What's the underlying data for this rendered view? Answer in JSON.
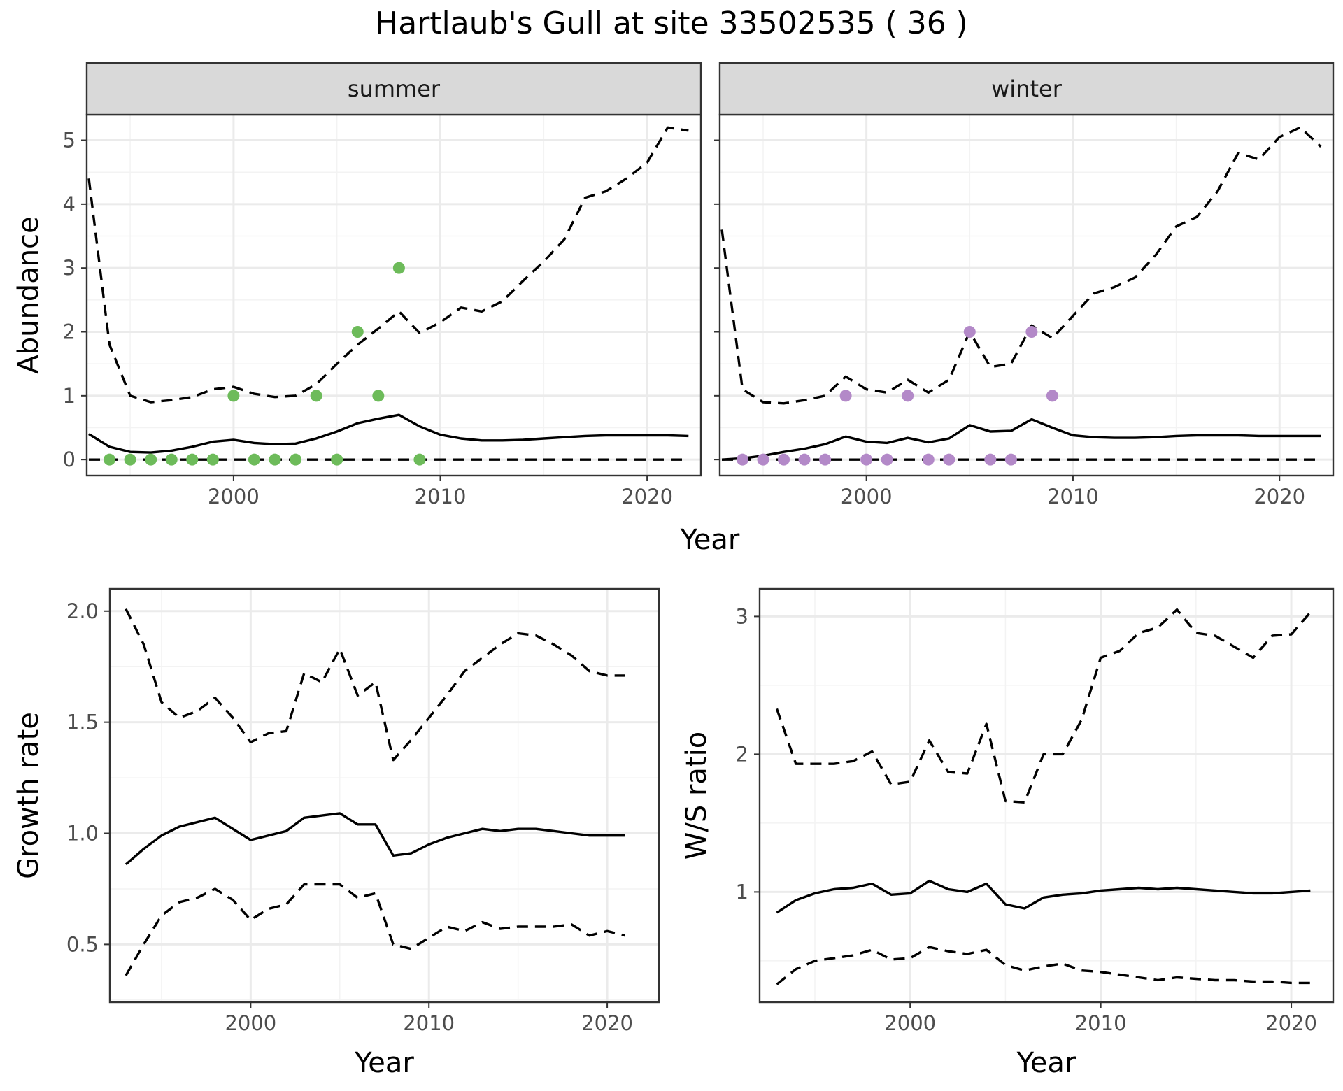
{
  "title": "Hartlaub's Gull at site 33502535 ( 36 )",
  "colors": {
    "summer": "#6dbb5a",
    "winter": "#b389c8"
  },
  "chart_data": [
    {
      "type": "line",
      "panel": "summer",
      "strip": "summer",
      "xlabel": "Year",
      "ylabel": "Abundance",
      "xlim": [
        1992.9,
        2022.6
      ],
      "ylim": [
        -0.25,
        5.4
      ],
      "xticks": [
        2000,
        2010,
        2020
      ],
      "yticks": [
        0,
        1,
        2,
        3,
        4,
        5
      ],
      "x": [
        1993,
        1994,
        1995,
        1996,
        1997,
        1998,
        1999,
        2000,
        2001,
        2002,
        2003,
        2004,
        2005,
        2006,
        2007,
        2008,
        2009,
        2010,
        2011,
        2012,
        2013,
        2014,
        2015,
        2016,
        2017,
        2018,
        2019,
        2020,
        2021,
        2022
      ],
      "series": [
        {
          "style": "solid",
          "values": [
            0.4,
            0.2,
            0.12,
            0.11,
            0.14,
            0.2,
            0.28,
            0.31,
            0.26,
            0.24,
            0.25,
            0.33,
            0.44,
            0.57,
            0.64,
            0.7,
            0.52,
            0.39,
            0.33,
            0.3,
            0.3,
            0.31,
            0.33,
            0.35,
            0.37,
            0.38,
            0.38,
            0.38,
            0.38,
            0.37
          ]
        },
        {
          "style": "dashed",
          "values": [
            4.4,
            1.8,
            1.0,
            0.9,
            0.93,
            0.98,
            1.1,
            1.14,
            1.03,
            0.98,
            1.0,
            1.18,
            1.5,
            1.8,
            2.05,
            2.32,
            1.98,
            2.15,
            2.38,
            2.32,
            2.48,
            2.8,
            3.1,
            3.45,
            4.1,
            4.2,
            4.4,
            4.65,
            5.2,
            5.15
          ]
        },
        {
          "style": "dashed",
          "values": [
            0,
            0,
            0,
            0,
            0,
            0,
            0,
            0,
            0,
            0,
            0,
            0,
            0,
            0,
            0,
            0,
            0,
            0,
            0,
            0,
            0,
            0,
            0,
            0,
            0,
            0,
            0,
            0,
            0,
            0
          ]
        }
      ],
      "points": {
        "x": [
          1994,
          1995,
          1996,
          1997,
          1998,
          1999,
          2000,
          2001,
          2002,
          2003,
          2004,
          2005,
          2006,
          2007,
          2008,
          2009
        ],
        "y": [
          0,
          0,
          0,
          0,
          0,
          0,
          1,
          0,
          0,
          0,
          1,
          0,
          2,
          1,
          3,
          0
        ]
      }
    },
    {
      "type": "line",
      "panel": "winter",
      "strip": "winter",
      "xlabel": "Year",
      "ylabel": "Abundance",
      "xlim": [
        1992.9,
        2022.6
      ],
      "ylim": [
        -0.25,
        5.4
      ],
      "xticks": [
        2000,
        2010,
        2020
      ],
      "yticks": [
        0,
        1,
        2,
        3,
        4,
        5
      ],
      "x": [
        1993,
        1994,
        1995,
        1996,
        1997,
        1998,
        1999,
        2000,
        2001,
        2002,
        2003,
        2004,
        2005,
        2006,
        2007,
        2008,
        2009,
        2010,
        2011,
        2012,
        2013,
        2014,
        2015,
        2016,
        2017,
        2018,
        2019,
        2020,
        2021,
        2022
      ],
      "series": [
        {
          "style": "solid",
          "values": [
            0.0,
            0.02,
            0.06,
            0.12,
            0.17,
            0.24,
            0.36,
            0.28,
            0.26,
            0.34,
            0.27,
            0.33,
            0.54,
            0.44,
            0.45,
            0.63,
            0.5,
            0.38,
            0.35,
            0.34,
            0.34,
            0.35,
            0.37,
            0.38,
            0.38,
            0.38,
            0.37,
            0.37,
            0.37,
            0.37
          ]
        },
        {
          "style": "dashed",
          "values": [
            3.6,
            1.1,
            0.9,
            0.88,
            0.93,
            1.0,
            1.3,
            1.1,
            1.05,
            1.25,
            1.05,
            1.25,
            2.0,
            1.45,
            1.5,
            2.1,
            1.9,
            2.25,
            2.6,
            2.7,
            2.85,
            3.2,
            3.65,
            3.8,
            4.2,
            4.8,
            4.7,
            5.05,
            5.2,
            4.9
          ]
        },
        {
          "style": "dashed",
          "values": [
            0,
            0,
            0,
            0,
            0,
            0,
            0,
            0,
            0,
            0,
            0,
            0,
            0,
            0,
            0,
            0,
            0,
            0,
            0,
            0,
            0,
            0,
            0,
            0,
            0,
            0,
            0,
            0,
            0,
            0
          ]
        }
      ],
      "points": {
        "x": [
          1994,
          1995,
          1996,
          1997,
          1998,
          1999,
          2000,
          2001,
          2002,
          2003,
          2004,
          2005,
          2006,
          2007,
          2008,
          2009
        ],
        "y": [
          0,
          0,
          0,
          0,
          0,
          1,
          0,
          0,
          1,
          0,
          0,
          2,
          0,
          0,
          2,
          1
        ]
      }
    },
    {
      "type": "line",
      "panel": "growth",
      "xlabel": "Year",
      "ylabel": "Growth rate",
      "xlim": [
        1992.1,
        2022.9
      ],
      "ylim": [
        0.24,
        2.1
      ],
      "xticks": [
        2000,
        2010,
        2020
      ],
      "yticks": [
        0.5,
        1.0,
        1.5,
        2.0
      ],
      "ytick_labels": [
        "0.5",
        "1.0",
        "1.5",
        "2.0"
      ],
      "x": [
        1993,
        1994,
        1995,
        1996,
        1997,
        1998,
        1999,
        2000,
        2001,
        2002,
        2003,
        2004,
        2005,
        2006,
        2007,
        2008,
        2009,
        2010,
        2011,
        2012,
        2013,
        2014,
        2015,
        2016,
        2017,
        2018,
        2019,
        2020,
        2021
      ],
      "series": [
        {
          "style": "solid",
          "values": [
            0.86,
            0.93,
            0.99,
            1.03,
            1.05,
            1.07,
            1.02,
            0.97,
            0.99,
            1.01,
            1.07,
            1.08,
            1.09,
            1.04,
            1.04,
            0.9,
            0.91,
            0.95,
            0.98,
            1.0,
            1.02,
            1.01,
            1.02,
            1.02,
            1.01,
            1.0,
            0.99,
            0.99,
            0.99
          ]
        },
        {
          "style": "dashed",
          "values": [
            2.01,
            1.85,
            1.59,
            1.52,
            1.55,
            1.61,
            1.52,
            1.41,
            1.45,
            1.46,
            1.72,
            1.68,
            1.83,
            1.62,
            1.68,
            1.33,
            1.42,
            1.52,
            1.62,
            1.73,
            1.79,
            1.85,
            1.9,
            1.89,
            1.85,
            1.8,
            1.73,
            1.71,
            1.71
          ]
        },
        {
          "style": "dashed",
          "values": [
            0.36,
            0.5,
            0.63,
            0.69,
            0.71,
            0.75,
            0.7,
            0.61,
            0.66,
            0.68,
            0.77,
            0.77,
            0.77,
            0.71,
            0.73,
            0.5,
            0.48,
            0.53,
            0.58,
            0.56,
            0.6,
            0.57,
            0.58,
            0.58,
            0.58,
            0.59,
            0.54,
            0.56,
            0.54
          ]
        }
      ]
    },
    {
      "type": "line",
      "panel": "ws-ratio",
      "xlabel": "Year",
      "ylabel": "W/S ratio",
      "xlim": [
        1992.1,
        2022.2
      ],
      "ylim": [
        0.2,
        3.2
      ],
      "xticks": [
        2000,
        2010,
        2020
      ],
      "yticks": [
        1,
        2,
        3
      ],
      "ytick_labels": [
        "1",
        "2",
        "3"
      ],
      "x": [
        1993,
        1994,
        1995,
        1996,
        1997,
        1998,
        1999,
        2000,
        2001,
        2002,
        2003,
        2004,
        2005,
        2006,
        2007,
        2008,
        2009,
        2010,
        2011,
        2012,
        2013,
        2014,
        2015,
        2016,
        2017,
        2018,
        2019,
        2020,
        2021
      ],
      "series": [
        {
          "style": "solid",
          "values": [
            0.85,
            0.94,
            0.99,
            1.02,
            1.03,
            1.06,
            0.98,
            0.99,
            1.08,
            1.02,
            1.0,
            1.06,
            0.91,
            0.88,
            0.96,
            0.98,
            0.99,
            1.01,
            1.02,
            1.03,
            1.02,
            1.03,
            1.02,
            1.01,
            1.0,
            0.99,
            0.99,
            1.0,
            1.01
          ]
        },
        {
          "style": "dashed",
          "values": [
            2.33,
            1.93,
            1.93,
            1.93,
            1.95,
            2.02,
            1.78,
            1.8,
            2.1,
            1.87,
            1.86,
            2.22,
            1.66,
            1.65,
            2.0,
            2.0,
            2.25,
            2.7,
            2.75,
            2.88,
            2.92,
            3.05,
            2.88,
            2.86,
            2.78,
            2.7,
            2.86,
            2.87,
            3.03
          ]
        },
        {
          "style": "dashed",
          "values": [
            0.33,
            0.44,
            0.5,
            0.52,
            0.54,
            0.58,
            0.51,
            0.52,
            0.6,
            0.57,
            0.55,
            0.58,
            0.47,
            0.43,
            0.46,
            0.48,
            0.43,
            0.42,
            0.4,
            0.38,
            0.36,
            0.38,
            0.37,
            0.36,
            0.36,
            0.35,
            0.35,
            0.34,
            0.34
          ]
        }
      ]
    }
  ]
}
